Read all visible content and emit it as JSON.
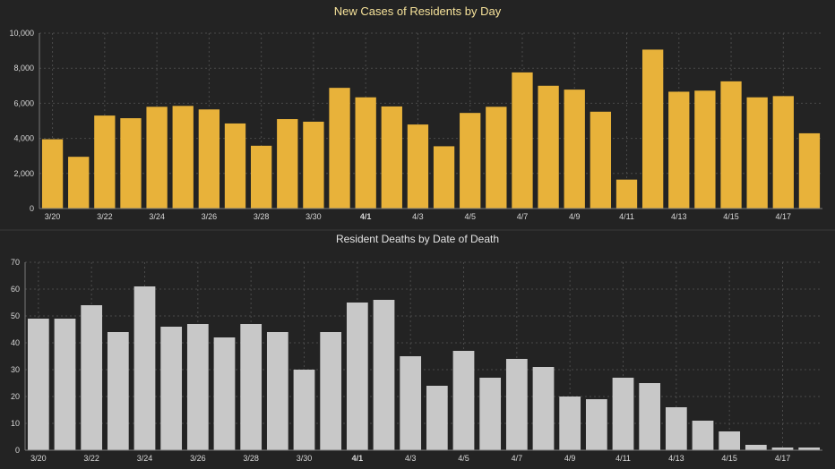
{
  "colors": {
    "background": "#232323",
    "cases_bar": "#e8b23a",
    "deaths_bar": "#c8c8c8",
    "grid": "#4a4a4a",
    "axis": "#7a7a7a"
  },
  "chart_data": [
    {
      "type": "bar",
      "title": "New Cases of Residents by Day",
      "xlabel": "",
      "ylabel": "",
      "ylim": [
        0,
        10000
      ],
      "yticks": [
        0,
        2000,
        4000,
        6000,
        8000,
        10000
      ],
      "ytick_labels": [
        "0",
        "2,000",
        "4,000",
        "6,000",
        "8,000",
        "10,000"
      ],
      "grid": true,
      "categories": [
        "3/20",
        "3/21",
        "3/22",
        "3/23",
        "3/24",
        "3/25",
        "3/26",
        "3/27",
        "3/28",
        "3/29",
        "3/30",
        "3/31",
        "4/1",
        "4/2",
        "4/3",
        "4/4",
        "4/5",
        "4/6",
        "4/7",
        "4/8",
        "4/9",
        "4/10",
        "4/11",
        "4/12",
        "4/13",
        "4/14",
        "4/15",
        "4/16",
        "4/17",
        "4/18"
      ],
      "xtick_labels": [
        "3/20",
        "",
        "3/22",
        "",
        "3/24",
        "",
        "3/26",
        "",
        "3/28",
        "",
        "3/30",
        "",
        "4/1",
        "",
        "4/3",
        "",
        "4/5",
        "",
        "4/7",
        "",
        "4/9",
        "",
        "4/11",
        "",
        "4/13",
        "",
        "4/15",
        "",
        "4/17",
        ""
      ],
      "values": [
        3950,
        2950,
        5300,
        5150,
        5800,
        5850,
        5650,
        4850,
        3580,
        5100,
        4950,
        6880,
        6340,
        5820,
        4790,
        3550,
        5450,
        5800,
        7760,
        7000,
        6780,
        5520,
        1650,
        9060,
        6660,
        6720,
        7250,
        6340,
        6410,
        4290
      ]
    },
    {
      "type": "bar",
      "title": "Resident Deaths by Date of Death",
      "xlabel": "",
      "ylabel": "",
      "ylim": [
        0,
        70
      ],
      "yticks": [
        0,
        10,
        20,
        30,
        40,
        50,
        60,
        70
      ],
      "ytick_labels": [
        "0",
        "10",
        "20",
        "30",
        "40",
        "50",
        "60",
        "70"
      ],
      "grid": true,
      "categories": [
        "3/20",
        "3/21",
        "3/22",
        "3/23",
        "3/24",
        "3/25",
        "3/26",
        "3/27",
        "3/28",
        "3/29",
        "3/30",
        "3/31",
        "4/1",
        "4/2",
        "4/3",
        "4/4",
        "4/5",
        "4/6",
        "4/7",
        "4/8",
        "4/9",
        "4/10",
        "4/11",
        "4/12",
        "4/13",
        "4/14",
        "4/15",
        "4/16",
        "4/17",
        "4/18"
      ],
      "xtick_labels": [
        "3/20",
        "",
        "3/22",
        "",
        "3/24",
        "",
        "3/26",
        "",
        "3/28",
        "",
        "3/30",
        "",
        "4/1",
        "",
        "4/3",
        "",
        "4/5",
        "",
        "4/7",
        "",
        "4/9",
        "",
        "4/11",
        "",
        "4/13",
        "",
        "4/15",
        "",
        "4/17",
        ""
      ],
      "values": [
        49,
        49,
        54,
        44,
        61,
        46,
        47,
        42,
        47,
        44,
        30,
        44,
        55,
        56,
        35,
        24,
        37,
        27,
        34,
        31,
        20,
        19,
        27,
        25,
        16,
        11,
        7,
        2,
        1,
        1
      ]
    }
  ]
}
